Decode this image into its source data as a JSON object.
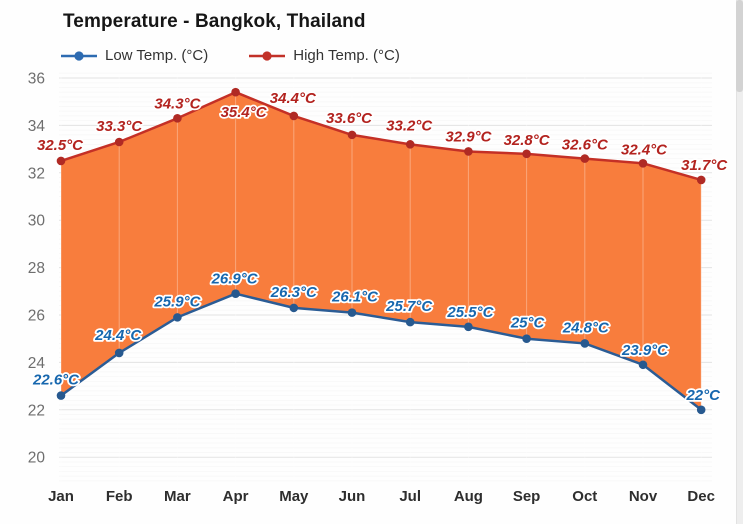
{
  "title": "Temperature - Bangkok, Thailand",
  "legend": {
    "items": [
      {
        "id": "low-temp",
        "label": "Low Temp. (°C)",
        "color": "#2d6bb1"
      },
      {
        "id": "high-temp",
        "label": "High Temp. (°C)",
        "color": "#c23128"
      }
    ]
  },
  "chart_data": {
    "type": "line",
    "title": "Temperature - Bangkok, Thailand",
    "categories": [
      "Jan",
      "Feb",
      "Mar",
      "Apr",
      "May",
      "Jun",
      "Jul",
      "Aug",
      "Sep",
      "Oct",
      "Nov",
      "Dec"
    ],
    "yticks": [
      20,
      22,
      24,
      26,
      28,
      30,
      32,
      34,
      36
    ],
    "ylim": [
      19,
      36.2
    ],
    "grid": true,
    "legend_position": "top-left",
    "fill_between_color": "#f87d3d",
    "series": [
      {
        "id": "low-temp",
        "name": "Low Temp. (°C)",
        "color": "#2b5c95",
        "point_color": "#27598f",
        "label_color": "#1767ae",
        "values": [
          22.6,
          24.4,
          25.9,
          26.9,
          26.3,
          26.1,
          25.7,
          25.5,
          25,
          24.8,
          23.9,
          22
        ],
        "labels": [
          "22.6°C",
          "24.4°C",
          "25.9°C",
          "26.9°C",
          "26.3°C",
          "26.1°C",
          "25.7°C",
          "25.5°C",
          "25°C",
          "24.8°C",
          "23.9°C",
          "22°C"
        ],
        "label_offsets": [
          [
            -5,
            -11
          ],
          [
            -1,
            -13
          ],
          [
            0,
            -11
          ],
          [
            -1,
            -10
          ],
          [
            0,
            -11
          ],
          [
            3,
            -11
          ],
          [
            -1,
            -11
          ],
          [
            2,
            -10
          ],
          [
            1,
            -11
          ],
          [
            1,
            -11
          ],
          [
            2,
            -10
          ],
          [
            2,
            -10
          ]
        ]
      },
      {
        "id": "high-temp",
        "name": "High Temp. (°C)",
        "color": "#c43026",
        "point_color": "#b02a24",
        "label_color": "#b3231f",
        "values": [
          32.5,
          33.3,
          34.3,
          35.4,
          34.4,
          33.6,
          33.2,
          32.9,
          32.8,
          32.6,
          32.4,
          31.7
        ],
        "labels": [
          "32.5°C",
          "33.3°C",
          "34.3°C",
          "35.4°C",
          "34.4°C",
          "33.6°C",
          "33.2°C",
          "32.9°C",
          "32.8°C",
          "32.6°C",
          "32.4°C",
          "31.7°C"
        ],
        "label_offsets": [
          [
            -1,
            -11
          ],
          [
            0,
            -11
          ],
          [
            0,
            -10
          ],
          [
            8,
            25
          ],
          [
            -1,
            -13
          ],
          [
            -3,
            -12
          ],
          [
            -1,
            -14
          ],
          [
            0,
            -10
          ],
          [
            0,
            -9
          ],
          [
            0,
            -9
          ],
          [
            1,
            -9
          ],
          [
            3,
            -10
          ]
        ]
      }
    ]
  }
}
